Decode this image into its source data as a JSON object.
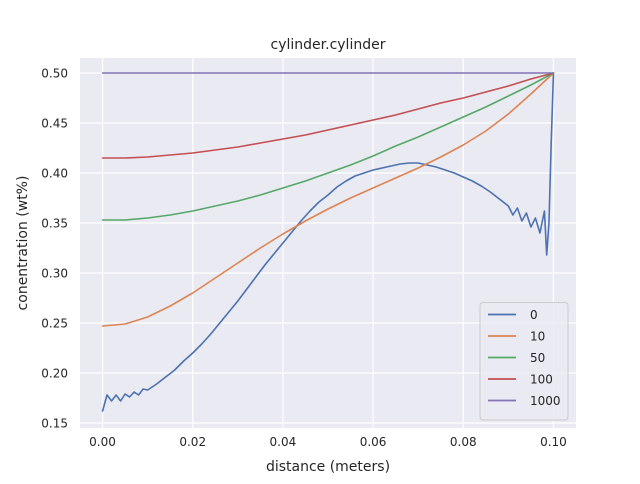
{
  "chart_data": {
    "type": "line",
    "title": "cylinder.cylinder",
    "xlabel": "distance (meters)",
    "ylabel": "conentration (wt%)",
    "xlim": [
      -0.005,
      0.105
    ],
    "ylim": [
      0.145,
      0.515
    ],
    "xticks": [
      0.0,
      0.02,
      0.04,
      0.06,
      0.08,
      0.1
    ],
    "xtick_labels": [
      "0.00",
      "0.02",
      "0.04",
      "0.06",
      "0.08",
      "0.10"
    ],
    "yticks": [
      0.15,
      0.2,
      0.25,
      0.3,
      0.35,
      0.4,
      0.45,
      0.5
    ],
    "ytick_labels": [
      "0.15",
      "0.20",
      "0.25",
      "0.30",
      "0.35",
      "0.40",
      "0.45",
      "0.50"
    ],
    "grid": true,
    "legend_position": "bottom-right",
    "background_color": "#eaeaf2",
    "series": [
      {
        "name": "0",
        "color": "#4c72b0",
        "x": [
          0.0,
          0.001,
          0.002,
          0.003,
          0.004,
          0.005,
          0.006,
          0.007,
          0.008,
          0.009,
          0.01,
          0.012,
          0.014,
          0.016,
          0.018,
          0.02,
          0.022,
          0.024,
          0.026,
          0.028,
          0.03,
          0.032,
          0.034,
          0.036,
          0.038,
          0.04,
          0.042,
          0.044,
          0.046,
          0.048,
          0.05,
          0.052,
          0.054,
          0.056,
          0.058,
          0.06,
          0.062,
          0.064,
          0.066,
          0.068,
          0.07,
          0.072,
          0.074,
          0.076,
          0.078,
          0.08,
          0.082,
          0.084,
          0.086,
          0.088,
          0.09,
          0.091,
          0.092,
          0.093,
          0.094,
          0.095,
          0.096,
          0.097,
          0.098,
          0.0985,
          0.099,
          0.0995,
          0.1
        ],
        "values": [
          0.162,
          0.178,
          0.172,
          0.178,
          0.172,
          0.179,
          0.176,
          0.181,
          0.178,
          0.184,
          0.183,
          0.189,
          0.196,
          0.203,
          0.212,
          0.22,
          0.229,
          0.239,
          0.25,
          0.261,
          0.272,
          0.284,
          0.296,
          0.308,
          0.319,
          0.33,
          0.341,
          0.352,
          0.362,
          0.371,
          0.378,
          0.386,
          0.392,
          0.397,
          0.4,
          0.403,
          0.405,
          0.407,
          0.409,
          0.41,
          0.41,
          0.408,
          0.406,
          0.403,
          0.4,
          0.396,
          0.392,
          0.387,
          0.381,
          0.374,
          0.367,
          0.358,
          0.365,
          0.352,
          0.36,
          0.346,
          0.355,
          0.34,
          0.362,
          0.318,
          0.35,
          0.43,
          0.5
        ]
      },
      {
        "name": "10",
        "color": "#dd8452",
        "x": [
          0.0,
          0.005,
          0.01,
          0.015,
          0.02,
          0.025,
          0.03,
          0.035,
          0.04,
          0.045,
          0.05,
          0.055,
          0.06,
          0.065,
          0.07,
          0.075,
          0.08,
          0.085,
          0.09,
          0.095,
          0.1
        ],
        "values": [
          0.247,
          0.249,
          0.256,
          0.267,
          0.28,
          0.295,
          0.31,
          0.325,
          0.339,
          0.352,
          0.364,
          0.375,
          0.385,
          0.395,
          0.405,
          0.416,
          0.428,
          0.442,
          0.459,
          0.479,
          0.5
        ]
      },
      {
        "name": "50",
        "color": "#55a868",
        "x": [
          0.0,
          0.005,
          0.01,
          0.015,
          0.02,
          0.025,
          0.03,
          0.035,
          0.04,
          0.045,
          0.05,
          0.055,
          0.06,
          0.065,
          0.07,
          0.075,
          0.08,
          0.085,
          0.09,
          0.095,
          0.1
        ],
        "values": [
          0.353,
          0.353,
          0.355,
          0.358,
          0.362,
          0.367,
          0.372,
          0.378,
          0.385,
          0.392,
          0.4,
          0.408,
          0.417,
          0.427,
          0.436,
          0.446,
          0.456,
          0.466,
          0.477,
          0.488,
          0.5
        ]
      },
      {
        "name": "100",
        "color": "#c44e52",
        "x": [
          0.0,
          0.005,
          0.01,
          0.015,
          0.02,
          0.025,
          0.03,
          0.035,
          0.04,
          0.045,
          0.05,
          0.055,
          0.06,
          0.065,
          0.07,
          0.075,
          0.08,
          0.085,
          0.09,
          0.095,
          0.1
        ],
        "values": [
          0.415,
          0.415,
          0.416,
          0.418,
          0.42,
          0.423,
          0.426,
          0.43,
          0.434,
          0.438,
          0.443,
          0.448,
          0.453,
          0.458,
          0.464,
          0.47,
          0.475,
          0.481,
          0.487,
          0.494,
          0.5
        ]
      },
      {
        "name": "1000",
        "color": "#8172b3",
        "x": [
          0.0,
          0.1
        ],
        "values": [
          0.5,
          0.5
        ]
      }
    ]
  }
}
